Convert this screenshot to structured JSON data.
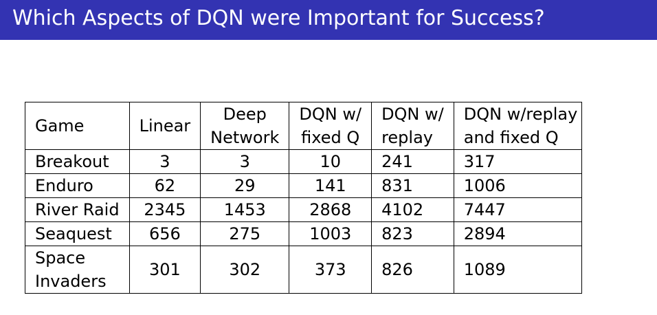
{
  "slide": {
    "title": "Which Aspects of DQN were Important for Success?"
  },
  "table": {
    "headers": [
      [
        "Game"
      ],
      [
        "Linear"
      ],
      [
        "Deep",
        "Network"
      ],
      [
        "DQN w/",
        "fixed Q"
      ],
      [
        "DQN w/",
        "replay"
      ],
      [
        "DQN w/replay",
        "and fixed Q"
      ]
    ],
    "rows": [
      {
        "game": [
          "Breakout"
        ],
        "values": [
          "3",
          "3",
          "10",
          "241",
          "317"
        ]
      },
      {
        "game": [
          "Enduro"
        ],
        "values": [
          "62",
          "29",
          "141",
          "831",
          "1006"
        ]
      },
      {
        "game": [
          "River Raid"
        ],
        "values": [
          "2345",
          "1453",
          "2868",
          "4102",
          "7447"
        ]
      },
      {
        "game": [
          "Seaquest"
        ],
        "values": [
          "656",
          "275",
          "1003",
          "823",
          "2894"
        ]
      },
      {
        "game": [
          "Space",
          "Invaders"
        ],
        "values": [
          "301",
          "302",
          "373",
          "826",
          "1089"
        ]
      }
    ]
  },
  "colors": {
    "title_bar": "#3333b2",
    "title_text": "#ffffff"
  }
}
